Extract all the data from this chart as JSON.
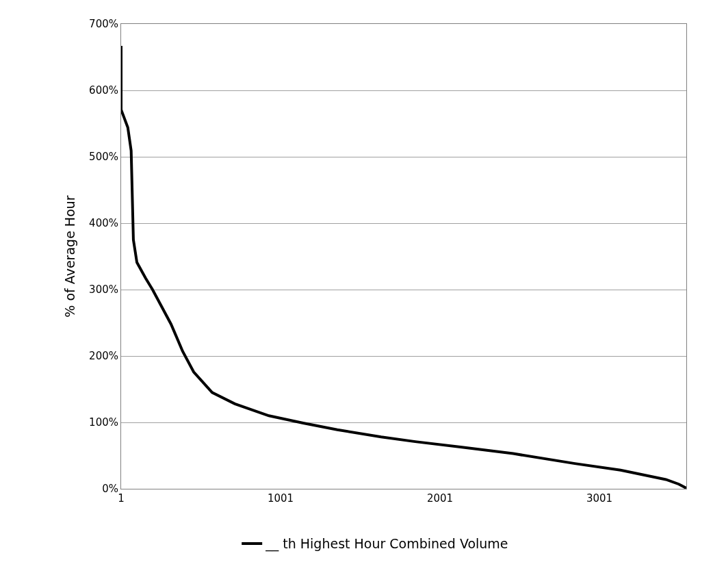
{
  "chart_data": {
    "type": "line",
    "ylabel": "% of Average Hour",
    "x": [
      1,
      1,
      43,
      64,
      78,
      100,
      155,
      198,
      314,
      387,
      456,
      572,
      714,
      928,
      1143,
      1357,
      1632,
      1846,
      2130,
      2460,
      2847,
      3134,
      3418,
      3499,
      3546
    ],
    "series": [
      {
        "name": "__ th Highest Hour Combined Volume",
        "color": "#000000",
        "values": [
          667,
          571,
          544,
          509,
          375,
          341,
          317,
          300,
          248,
          207,
          176,
          145,
          128,
          110,
          99,
          89,
          78,
          71,
          63,
          53,
          38,
          28,
          14,
          7,
          1
        ]
      }
    ],
    "xlim": [
      1,
      3546
    ],
    "xticks": [
      1,
      1001,
      2001,
      3001
    ],
    "ylim": [
      0,
      700
    ],
    "yticks": [
      {
        "value": 0,
        "label": "0%"
      },
      {
        "value": 100,
        "label": "100%"
      },
      {
        "value": 200,
        "label": "200%"
      },
      {
        "value": 300,
        "label": "300%"
      },
      {
        "value": 400,
        "label": "400%"
      },
      {
        "value": 500,
        "label": "500%"
      },
      {
        "value": 600,
        "label": "600%"
      },
      {
        "value": 700,
        "label": "700%"
      }
    ],
    "grid": "y",
    "legend": "bottom",
    "marker": "none",
    "line_style": "solid"
  }
}
